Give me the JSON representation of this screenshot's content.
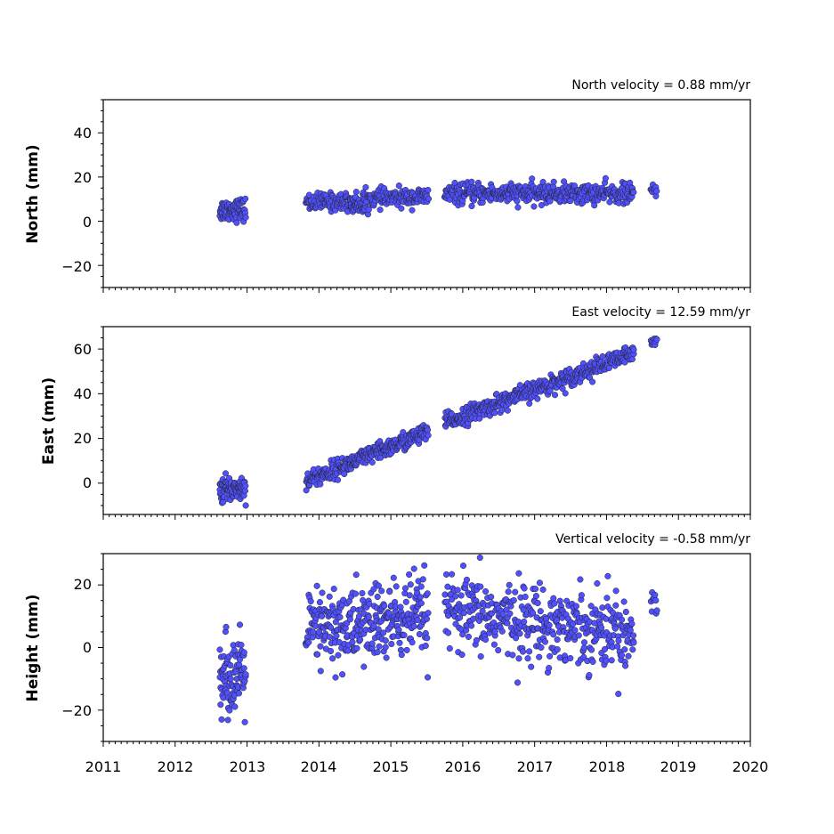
{
  "chart_data": [
    {
      "type": "scatter",
      "title": "North velocity = 0.88 mm/yr",
      "xlabel": "",
      "ylabel": "North (mm)",
      "xlim": [
        2011,
        2020
      ],
      "ylim": [
        -30,
        55
      ],
      "yticks": [
        -20,
        0,
        20,
        40
      ],
      "yticklabels": [
        "−20",
        "0",
        "20",
        "40"
      ],
      "marker_color": "#5050ff",
      "edge_color": "#222222",
      "segments": [
        {
          "x_start": 2012.62,
          "x_end": 2012.98,
          "trend": [
            5.0,
            5.5
          ],
          "spread": 2.5,
          "count": 80
        },
        {
          "x_start": 2013.82,
          "x_end": 2014.55,
          "trend": [
            8.5,
            9.0
          ],
          "spread": 2.0,
          "count": 110
        },
        {
          "x_start": 2014.45,
          "x_end": 2014.65,
          "trend": [
            6.5,
            7.0
          ],
          "spread": 1.5,
          "count": 30
        },
        {
          "x_start": 2014.6,
          "x_end": 2015.52,
          "trend": [
            10.0,
            11.0
          ],
          "spread": 2.0,
          "count": 140
        },
        {
          "x_start": 2015.75,
          "x_end": 2018.38,
          "trend": [
            12.5,
            12.5
          ],
          "spread": 2.2,
          "count": 420
        },
        {
          "x_start": 2018.62,
          "x_end": 2018.7,
          "trend": [
            13.5,
            13.5
          ],
          "spread": 2.0,
          "count": 10
        }
      ]
    },
    {
      "type": "scatter",
      "title": "East velocity = 12.59 mm/yr",
      "xlabel": "",
      "ylabel": "East (mm)",
      "xlim": [
        2011,
        2020
      ],
      "ylim": [
        -14,
        70
      ],
      "yticks": [
        0,
        20,
        40,
        60
      ],
      "yticklabels": [
        "0",
        "20",
        "40",
        "60"
      ],
      "marker_color": "#5050ff",
      "edge_color": "#222222",
      "segments": [
        {
          "x_start": 2012.62,
          "x_end": 2012.98,
          "trend": [
            -3.0,
            -2.0
          ],
          "spread": 2.8,
          "count": 90
        },
        {
          "x_start": 2013.82,
          "x_end": 2015.52,
          "trend": [
            1.0,
            23.0
          ],
          "spread": 2.0,
          "count": 300
        },
        {
          "x_start": 2015.75,
          "x_end": 2018.38,
          "trend": [
            27.0,
            58.0
          ],
          "spread": 2.0,
          "count": 420
        },
        {
          "x_start": 2018.62,
          "x_end": 2018.7,
          "trend": [
            64.0,
            65.5
          ],
          "spread": 1.5,
          "count": 10
        }
      ]
    },
    {
      "type": "scatter",
      "title": "Vertical velocity = -0.58 mm/yr",
      "xlabel": "",
      "ylabel": "Height (mm)",
      "xlim": [
        2011,
        2020
      ],
      "ylim": [
        -30,
        30
      ],
      "yticks": [
        -20,
        0,
        20
      ],
      "yticklabels": [
        "−20",
        "0",
        "20"
      ],
      "xticks": [
        2011,
        2012,
        2013,
        2014,
        2015,
        2016,
        2017,
        2018,
        2019,
        2020
      ],
      "xticklabels": [
        "2011",
        "2012",
        "2013",
        "2014",
        "2015",
        "2016",
        "2017",
        "2018",
        "2019",
        "2020"
      ],
      "marker_color": "#5050ff",
      "edge_color": "#222222",
      "segments": [
        {
          "x_start": 2012.62,
          "x_end": 2012.98,
          "trend": [
            -9.0,
            -9.0
          ],
          "spread": 6.0,
          "count": 90
        },
        {
          "x_start": 2013.82,
          "x_end": 2015.52,
          "trend": [
            5.0,
            10.0
          ],
          "spread": 6.5,
          "count": 320
        },
        {
          "x_start": 2015.75,
          "x_end": 2018.38,
          "trend": [
            11.0,
            5.0
          ],
          "spread": 6.0,
          "count": 420
        },
        {
          "x_start": 2018.62,
          "x_end": 2018.7,
          "trend": [
            14.0,
            14.0
          ],
          "spread": 4.0,
          "count": 10
        }
      ]
    }
  ]
}
